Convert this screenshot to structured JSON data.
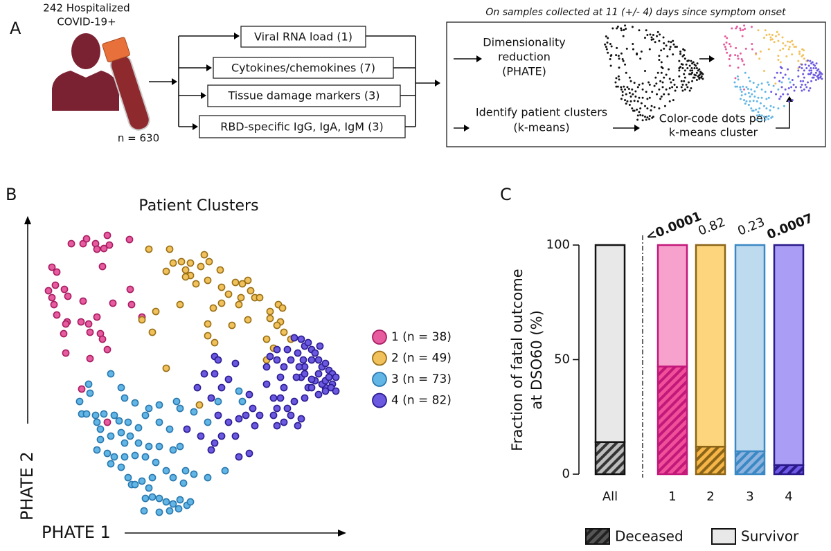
{
  "panels": [
    "A",
    "B",
    "C"
  ],
  "diagram": {
    "subject_lines": [
      "242 Hospitalized",
      "COVID-19+"
    ],
    "sample_count": "n = 630",
    "measures": [
      "Viral RNA load (1)",
      "Cytokines/chemokines (7)",
      "Tissue damage markers (3)",
      "RBD-specific IgG, IgA, IgM (3)"
    ],
    "pipeline_title": "On samples collected at 11 (+/- 4) days since symptom onset",
    "step_reduction": [
      "Dimensionality",
      "reduction",
      "(PHATE)"
    ],
    "step_clusters": [
      "Identify patient clusters",
      "(k-means)"
    ],
    "step_color": [
      "Color-code dots per",
      "k-means cluster"
    ]
  },
  "chart_data": [
    {
      "type": "scatter",
      "title": "Patient Clusters",
      "x_label": "PHATE 1",
      "y_label": "PHATE 2",
      "xlim": [
        30,
        500
      ],
      "ylim": [
        0,
        450
      ],
      "series": [
        {
          "name": "1 (n = 38)",
          "color": "#e65c9e",
          "edge": "#a81d63",
          "x": [
            103,
            120,
            138,
            155,
            158,
            150,
            140,
            125,
            187,
            75,
            82,
            70,
            80,
            75,
            78,
            93,
            98,
            82,
            97,
            92,
            95,
            117,
            128,
            130,
            145,
            148,
            140,
            163,
            188,
            190,
            205,
            120,
            130,
            95,
            155,
            118,
            155,
            148
          ],
          "values": [
            418,
            418,
            418,
            430,
            416,
            411,
            410,
            425,
            424,
            384,
            377,
            350,
            358,
            340,
            330,
            352,
            342,
            315,
            305,
            288,
            302,
            305,
            302,
            290,
            288,
            280,
            312,
            332,
            352,
            330,
            312,
            335,
            252,
            260,
            265,
            208,
            160,
            385
          ]
        },
        {
          "name": "2 (n = 49)",
          "color": "#f1c15c",
          "edge": "#9a7016",
          "x": [
            215,
            245,
            262,
            275,
            295,
            302,
            290,
            268,
            240,
            250,
            275,
            283,
            300,
            318,
            320,
            330,
            340,
            350,
            358,
            362,
            348,
            320,
            308,
            345,
            368,
            375,
            390,
            402,
            408,
            405,
            410,
            420,
            400,
            385,
            395,
            385,
            358,
            335,
            300,
            310,
            300,
            225,
            220,
            205,
            240,
            288,
            268,
            260,
            390
          ],
          "values": [
            410,
            410,
            392,
            390,
            402,
            392,
            385,
            380,
            378,
            390,
            372,
            360,
            365,
            380,
            355,
            345,
            362,
            360,
            365,
            350,
            340,
            332,
            325,
            330,
            340,
            340,
            320,
            330,
            325,
            305,
            290,
            280,
            300,
            280,
            267,
            250,
            308,
            300,
            302,
            275,
            285,
            320,
            290,
            308,
            238,
            185,
            370,
            330,
            310
          ]
        },
        {
          "name": "3 (n = 73)",
          "color": "#62b6e6",
          "edge": "#2a78ae",
          "x": [
            160,
            128,
            130,
            115,
            118,
            125,
            138,
            150,
            165,
            172,
            185,
            200,
            215,
            230,
            255,
            260,
            280,
            300,
            345,
            350,
            315,
            175,
            180,
            195,
            210,
            145,
            160,
            175,
            188,
            200,
            215,
            230,
            250,
            260,
            140,
            155,
            165,
            180,
            195,
            210,
            225,
            240,
            250,
            265,
            280,
            300,
            325,
            175,
            185,
            190,
            205,
            215,
            220,
            230,
            240,
            250,
            260,
            270,
            275,
            210,
            208,
            230,
            245,
            258,
            268,
            160,
            140,
            145,
            230,
            245,
            180,
            195,
            220
          ],
          "values": [
            230,
            215,
            202,
            190,
            172,
            172,
            170,
            172,
            170,
            162,
            160,
            152,
            180,
            185,
            190,
            180,
            175,
            160,
            205,
            190,
            190,
            210,
            195,
            188,
            170,
            150,
            140,
            145,
            140,
            130,
            125,
            125,
            120,
            125,
            120,
            115,
            110,
            110,
            112,
            110,
            102,
            90,
            80,
            72,
            85,
            80,
            90,
            95,
            80,
            70,
            75,
            65,
            52,
            50,
            45,
            42,
            48,
            40,
            45,
            50,
            32,
            30,
            32,
            35,
            90,
            100,
            160,
            135,
            160,
            150,
            130,
            70,
            80
          ]
        },
        {
          "name": "4 (n = 82)",
          "color": "#6b5ae0",
          "edge": "#2c1d92",
          "x": [
            425,
            435,
            440,
            445,
            450,
            455,
            460,
            465,
            470,
            475,
            480,
            485,
            480,
            470,
            465,
            455,
            450,
            440,
            435,
            445,
            460,
            470,
            478,
            485,
            430,
            438,
            420,
            410,
            400,
            390,
            385,
            405,
            410,
            405,
            400,
            395,
            400,
            410,
            415,
            425,
            420,
            435,
            430,
            450,
            460,
            470,
            440,
            385,
            395,
            360,
            365,
            355,
            345,
            330,
            375,
            368,
            340,
            320,
            310,
            315,
            305,
            290,
            270,
            340,
            310,
            310,
            330,
            320,
            305,
            285,
            295,
            345,
            360,
            315,
            440,
            450,
            462,
            475,
            432,
            428,
            415,
            400
          ],
          "values": [
            282,
            280,
            270,
            275,
            265,
            260,
            250,
            240,
            245,
            235,
            230,
            225,
            215,
            210,
            215,
            220,
            222,
            240,
            225,
            210,
            200,
            205,
            210,
            205,
            260,
            250,
            250,
            240,
            250,
            255,
            240,
            225,
            210,
            195,
            180,
            170,
            155,
            160,
            180,
            190,
            170,
            165,
            155,
            250,
            230,
            220,
            195,
            215,
            195,
            200,
            180,
            170,
            165,
            160,
            170,
            155,
            140,
            140,
            130,
            170,
            120,
            140,
            150,
            245,
            255,
            230,
            222,
            210,
            195,
            210,
            230,
            110,
            115,
            250,
            230,
            210,
            270,
            225,
            240,
            225,
            265,
            265
          ]
        }
      ]
    },
    {
      "type": "bar",
      "y_label": [
        "Fraction of fatal outcome",
        "at DSO60 (%)"
      ],
      "categories": [
        "All",
        "1",
        "2",
        "3",
        "4"
      ],
      "ylim": [
        0,
        100
      ],
      "yticks": [
        0,
        50,
        100
      ],
      "series": [
        {
          "name": "Deceased",
          "color": "#444444",
          "values": [
            14,
            47,
            12,
            10,
            4
          ]
        },
        {
          "name": "Survivor",
          "color": "#e8e8e8",
          "values": [
            86,
            53,
            88,
            90,
            96
          ]
        }
      ],
      "bar_colors": [
        "#e8e8e8",
        "#f7a2cd",
        "#fdd57c",
        "#bddaee",
        "#a99df5"
      ],
      "deceased_colors": [
        "#bdbdbd",
        "#f0509a",
        "#f6b648",
        "#8fb4e0",
        "#6e5ae6"
      ],
      "edge_colors": [
        "#111111",
        "#c2187a",
        "#8a6418",
        "#3a88c4",
        "#2a1a8a"
      ],
      "annotations": [
        null,
        "<0.0001",
        "0.82",
        "0.23",
        "0.0007"
      ],
      "annotation_bold": [
        false,
        true,
        false,
        false,
        true
      ]
    }
  ]
}
